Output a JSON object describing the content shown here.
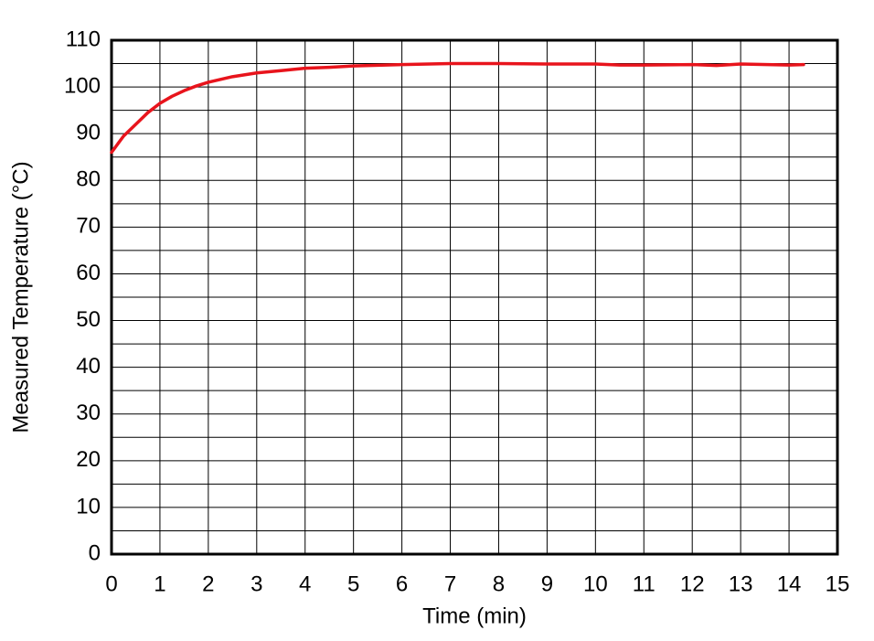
{
  "chart_data": {
    "type": "line",
    "x_label": "Time (min)",
    "y_label": "Measured Temperature (°C)",
    "series": [
      {
        "name": "Measured temperature",
        "color": "#e8141c",
        "x": [
          0,
          0.25,
          0.5,
          0.75,
          1,
          1.25,
          1.5,
          1.75,
          2,
          2.5,
          3,
          3.5,
          4,
          4.5,
          5,
          6,
          7,
          8,
          9,
          10,
          10.5,
          11,
          12,
          12.5,
          13,
          14,
          14.3
        ],
        "values": [
          86,
          89.5,
          92,
          94.5,
          96.5,
          98,
          99.2,
          100.2,
          101,
          102.2,
          103,
          103.5,
          104,
          104.2,
          104.5,
          104.8,
          105,
          105,
          104.9,
          104.9,
          104.7,
          104.7,
          104.8,
          104.6,
          104.9,
          104.7,
          104.8
        ]
      }
    ],
    "xlim": [
      0,
      15
    ],
    "xticks": [
      0,
      1,
      2,
      3,
      4,
      5,
      6,
      7,
      8,
      9,
      10,
      11,
      12,
      13,
      14,
      15
    ],
    "ylim": [
      0,
      110
    ],
    "yticks": [
      0,
      10,
      20,
      30,
      40,
      50,
      60,
      70,
      80,
      90,
      100,
      110
    ],
    "yminorticks": [
      5,
      15,
      25,
      35,
      45,
      55,
      65,
      75,
      85,
      95,
      105
    ],
    "grid": true
  }
}
